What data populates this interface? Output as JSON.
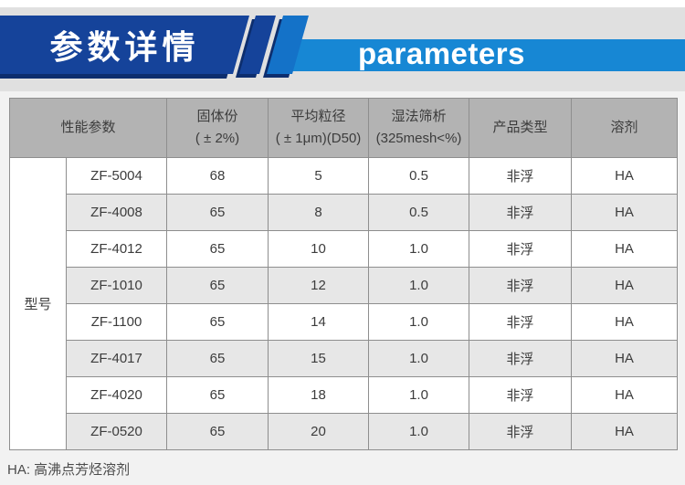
{
  "banner": {
    "title_cn": "参数详情",
    "title_en": "parameters",
    "colors": {
      "dark_blue": "#15439a",
      "shadow_blue": "#0d2e6e",
      "stripe_blue": "#1472c8",
      "bar_blue": "#1787d4"
    }
  },
  "table": {
    "group_label": "型号",
    "header": {
      "perf": "性能参数",
      "solid_1": "固体份",
      "solid_2": "( ± 2%)",
      "size_1": "平均粒径",
      "size_2": "( ± 1μm)(D50)",
      "sieve_1": "湿法筛析",
      "sieve_2": "(325mesh<%)",
      "type": "产品类型",
      "solvent": "溶剂"
    },
    "rows": [
      {
        "model": "ZF-5004",
        "solid": "68",
        "size": "5",
        "sieve": "0.5",
        "type": "非浮",
        "solvent": "HA"
      },
      {
        "model": "ZF-4008",
        "solid": "65",
        "size": "8",
        "sieve": "0.5",
        "type": "非浮",
        "solvent": "HA"
      },
      {
        "model": "ZF-4012",
        "solid": "65",
        "size": "10",
        "sieve": "1.0",
        "type": "非浮",
        "solvent": "HA"
      },
      {
        "model": "ZF-1010",
        "solid": "65",
        "size": "12",
        "sieve": "1.0",
        "type": "非浮",
        "solvent": "HA"
      },
      {
        "model": "ZF-1100",
        "solid": "65",
        "size": "14",
        "sieve": "1.0",
        "type": "非浮",
        "solvent": "HA"
      },
      {
        "model": "ZF-4017",
        "solid": "65",
        "size": "15",
        "sieve": "1.0",
        "type": "非浮",
        "solvent": "HA"
      },
      {
        "model": "ZF-4020",
        "solid": "65",
        "size": "18",
        "sieve": "1.0",
        "type": "非浮",
        "solvent": "HA"
      },
      {
        "model": "ZF-0520",
        "solid": "65",
        "size": "20",
        "sieve": "1.0",
        "type": "非浮",
        "solvent": "HA"
      }
    ]
  },
  "footnote": "HA: 高沸点芳烃溶剂"
}
